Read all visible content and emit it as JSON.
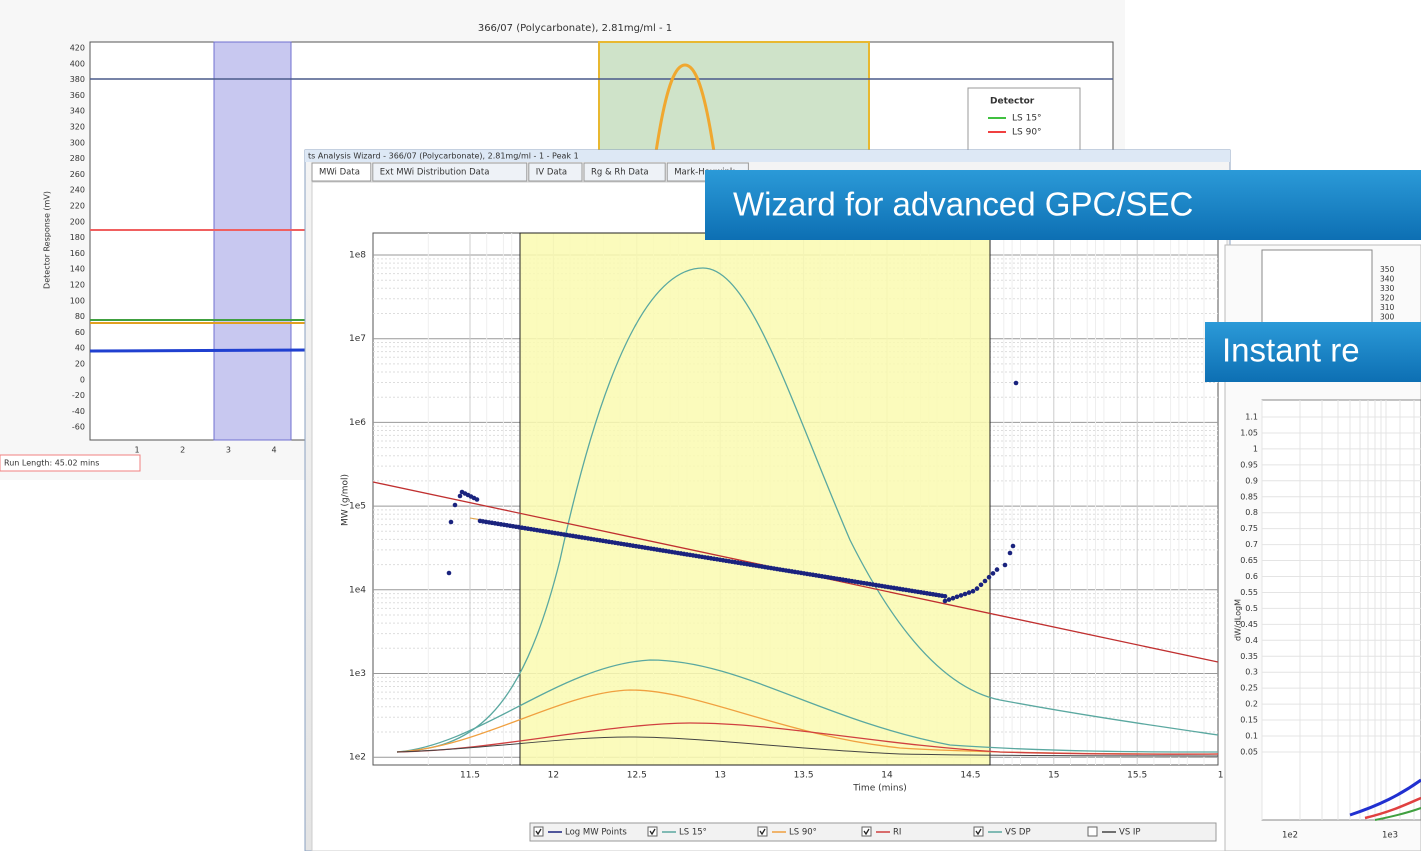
{
  "back_window": {
    "title": "366/07 (Polycarbonate), 2.81mg/ml - 1",
    "y_axis_label": "Detector Response (mV)",
    "y_ticks": [
      "420",
      "400",
      "380",
      "360",
      "340",
      "320",
      "300",
      "280",
      "260",
      "240",
      "220",
      "200",
      "180",
      "160",
      "140",
      "120",
      "100",
      "80",
      "60",
      "40",
      "20",
      "0",
      "-20",
      "-40",
      "-60"
    ],
    "x_ticks": [
      "1",
      "2",
      "3",
      "4"
    ],
    "legend": {
      "title": "Detector",
      "items": [
        "LS 15°",
        "LS 90°"
      ]
    },
    "status": "Run Length: 45.02 mins"
  },
  "front_window": {
    "title": "ts Analysis Wizard - 366/07 (Polycarbonate), 2.81mg/ml - 1 - Peak 1",
    "tabs": [
      "MWi Data",
      "Ext MWi Distribution Data",
      "IV Data",
      "Rg & Rh Data",
      "Mark-Houwink"
    ],
    "y_ticks": [
      "1e8",
      "1e7",
      "1e6",
      "1e5",
      "1e4",
      "1e3",
      "1e2"
    ],
    "x_ticks": [
      "11.5",
      "12",
      "12.5",
      "13",
      "13.5",
      "14",
      "14.5",
      "15",
      "15.5",
      "1"
    ],
    "y_axis_label": "MW (g/mol)",
    "x_axis_label": "Time (mins)",
    "legend": [
      "Log MW Points",
      "LS 15°",
      "LS 90°",
      "RI",
      "VS DP",
      "VS IP"
    ]
  },
  "right_window": {
    "right_ticks": [
      "350",
      "340",
      "330",
      "320",
      "310",
      "300"
    ],
    "y_ticks": [
      "1.1",
      "1.05",
      "1",
      "0.95",
      "0.9",
      "0.85",
      "0.8",
      "0.75",
      "0.7",
      "0.65",
      "0.6",
      "0.55",
      "0.5",
      "0.45",
      "0.4",
      "0.35",
      "0.3",
      "0.25",
      "0.2",
      "0.15",
      "0.1",
      "0.05"
    ],
    "y_axis_label": "dW/dLogM",
    "x_ticks": [
      "1e2",
      "1e3"
    ]
  },
  "callouts": [
    "Wizard for advanced GPC/SEC",
    "Instant re"
  ]
}
